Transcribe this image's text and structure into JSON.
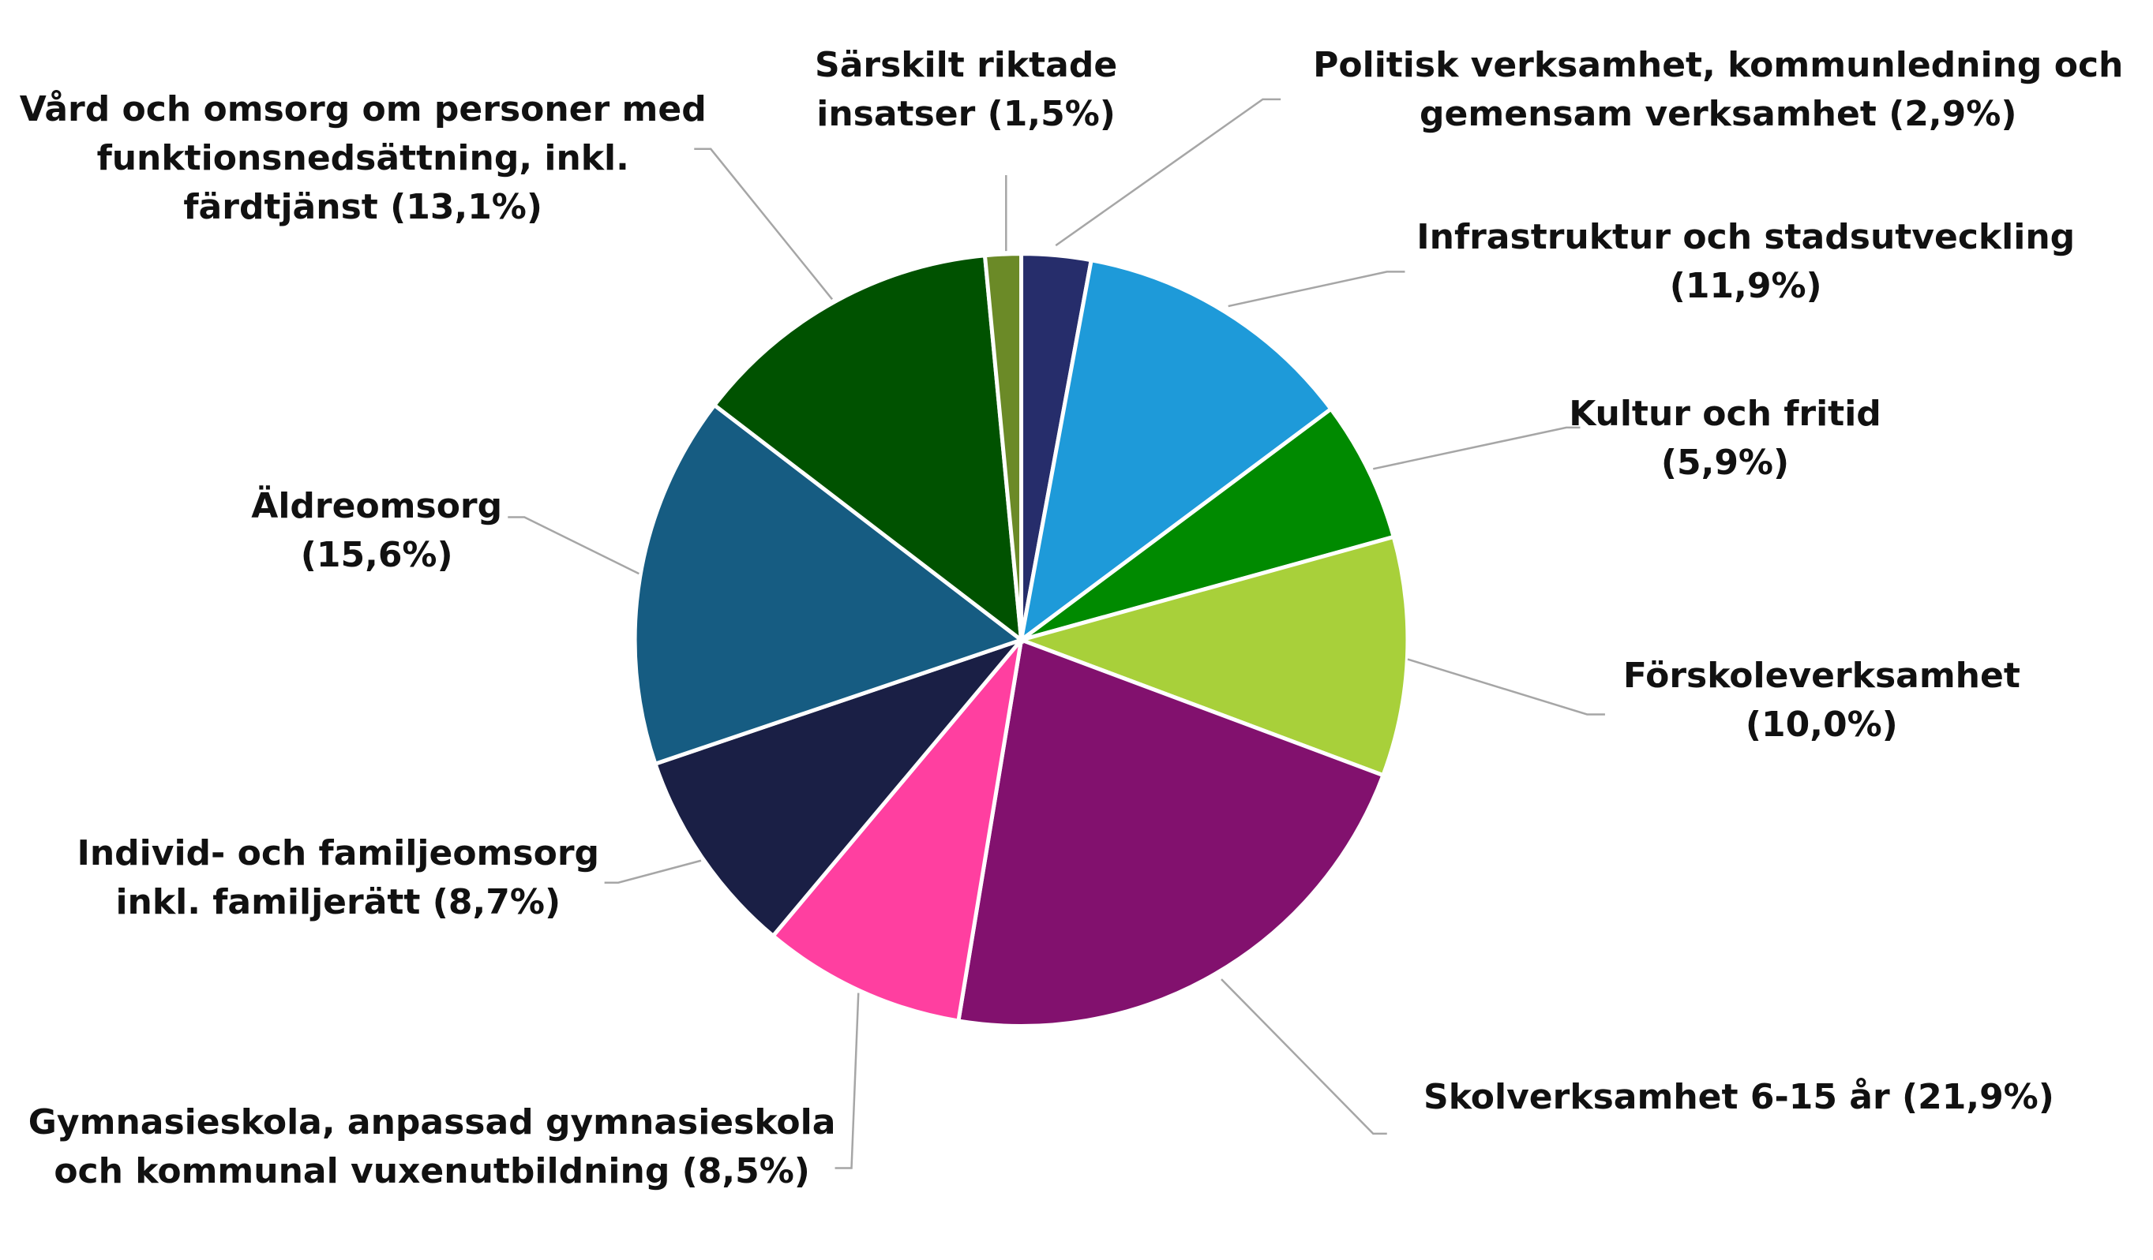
{
  "chart_data": {
    "type": "pie",
    "categories": [
      "Politisk verksamhet, kommunledning och gemensam verksamhet",
      "Infrastruktur och stadsutveckling",
      "Kultur och fritid",
      "Förskoleverksamhet",
      "Skolverksamhet 6-15 år",
      "Gymnasieskola, anpassad gymnasieskola och kommunal vuxenutbildning",
      "Individ- och familjeomsorg inkl. familjerätt",
      "Äldreomsorg",
      "Vård och omsorg om personer med funktionsnedsättning, inkl. färdtjänst",
      "Särskilt riktade insatser"
    ],
    "values": [
      2.9,
      11.9,
      5.9,
      10.0,
      21.9,
      8.5,
      8.7,
      15.6,
      13.1,
      1.5
    ],
    "value_labels": [
      "(2,9%)",
      "(11,9%)",
      "(5,9%)",
      "(10,0%)",
      "(21,9%)",
      "(8,5%)",
      "(8,7%)",
      "(15,6%)",
      "(13,1%)",
      "(1,5%)"
    ],
    "colors": [
      "#262d6b",
      "#1e9ad9",
      "#008a00",
      "#a8d03a",
      "#82116e",
      "#ff3fa0",
      "#1a1f45",
      "#165c82",
      "#005200",
      "#6b8a27"
    ]
  }
}
